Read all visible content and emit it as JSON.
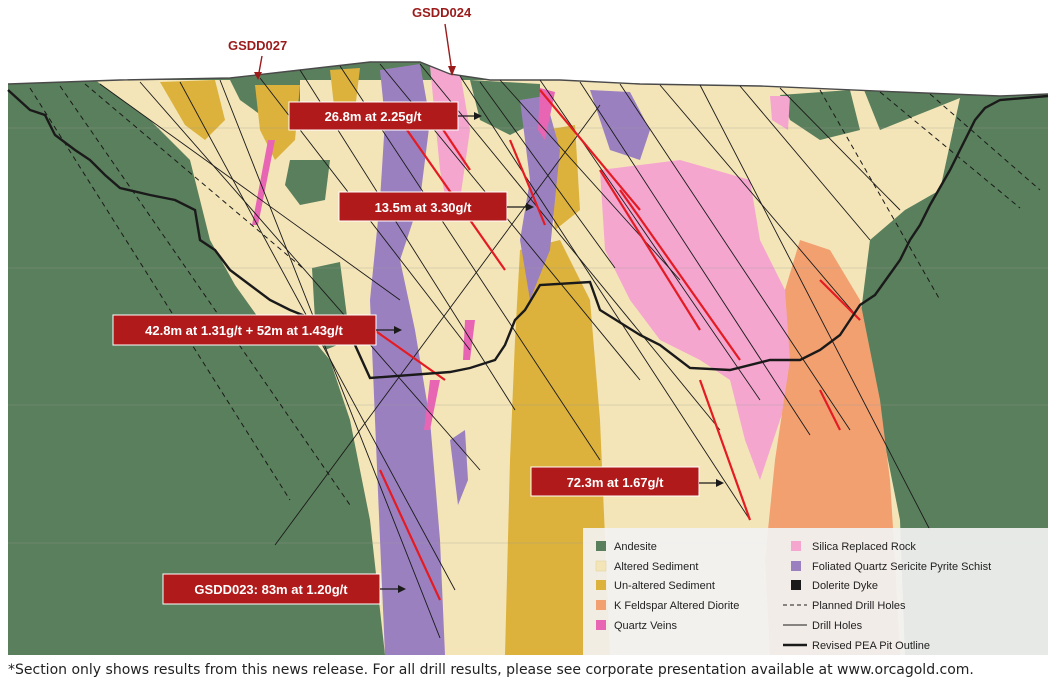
{
  "hole_labels": {
    "gsdd027": "GSDD027",
    "gsdd024": "GSDD024"
  },
  "callouts": {
    "c1": "26.8m at 2.25g/t",
    "c2": "13.5m at 3.30g/t",
    "c3": "42.8m at 1.31g/t + 52m at 1.43g/t",
    "c4": "72.3m at 1.67g/t",
    "c5": "GSDD023: 83m at 1.20g/t"
  },
  "legend": {
    "andesite": "Andesite",
    "altered_sediment": "Altered Sediment",
    "unaltered_sediment": "Un-altered Sediment",
    "kfeldspar": "K Feldspar Altered Diorite",
    "quartz_veins": "Quartz Veins",
    "silica": "Silica Replaced Rock",
    "schist": "Foliated Quartz Sericite Pyrite Schist",
    "dolerite": "Dolerite Dyke",
    "planned": "Planned Drill Holes",
    "drill": "Drill Holes",
    "pit": "Revised PEA Pit Outline"
  },
  "colors": {
    "andesite": "#5a7f5c",
    "altered_sediment": "#f4e5b8",
    "unaltered_sediment": "#dcb23c",
    "kfeldspar": "#f2a070",
    "quartz_veins": "#e865b4",
    "silica": "#f4a6cf",
    "schist": "#9b80c0",
    "dolerite": "#1a1a1a",
    "callout_bg": "#b11a1a",
    "intercept": "#e41b23"
  },
  "footnote": "*Section only shows results from this news release. For all drill results, please see corporate presentation available at www.orcagold.com."
}
